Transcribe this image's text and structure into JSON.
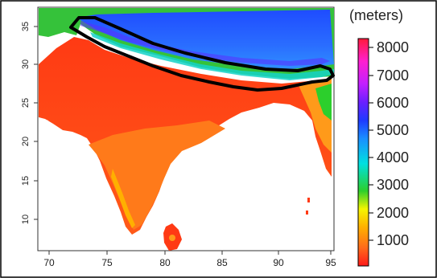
{
  "map": {
    "unit_label": "(meters)",
    "x_ticks": [
      "70",
      "75",
      "80",
      "85",
      "90",
      "95"
    ],
    "y_ticks": [
      "35",
      "30",
      "25",
      "20",
      "15",
      "10"
    ],
    "x_range": [
      69,
      95.5
    ],
    "y_range": [
      6.5,
      37
    ],
    "outline_color": "#000000",
    "background_color": "#ffffff"
  },
  "colorbar": {
    "ticks": [
      "8000",
      "7000",
      "6000",
      "5000",
      "4000",
      "3000",
      "2000",
      "1000"
    ],
    "range": [
      0,
      8500
    ],
    "colors": [
      "#ff1a1a",
      "#ff6a1a",
      "#ffb000",
      "#f5f500",
      "#2ccf2c",
      "#00e0e0",
      "#1a8fff",
      "#1f3aff",
      "#6a1fff",
      "#c21fff",
      "#ff1fcf",
      "#ff1a3a"
    ]
  }
}
